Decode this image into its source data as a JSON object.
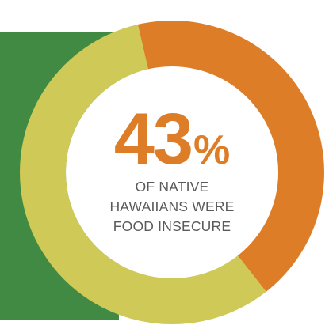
{
  "chart_data": {
    "type": "pie",
    "style": "donut",
    "slices": [
      {
        "label": "Food insecure",
        "value": 43,
        "color": "#DE7D28"
      },
      {
        "label": "",
        "value": 57,
        "color": "#CFC957"
      }
    ]
  },
  "center": {
    "value": "43",
    "unit": "%",
    "caption_lines": [
      "OF NATIVE",
      "HAWAIIANS WERE",
      "FOOD INSECURE"
    ]
  },
  "colors": {
    "background_block": "#418A44",
    "inner": "#FFFFFF",
    "value_text": "#DE7D28",
    "caption_text": "#5A5A5A"
  }
}
